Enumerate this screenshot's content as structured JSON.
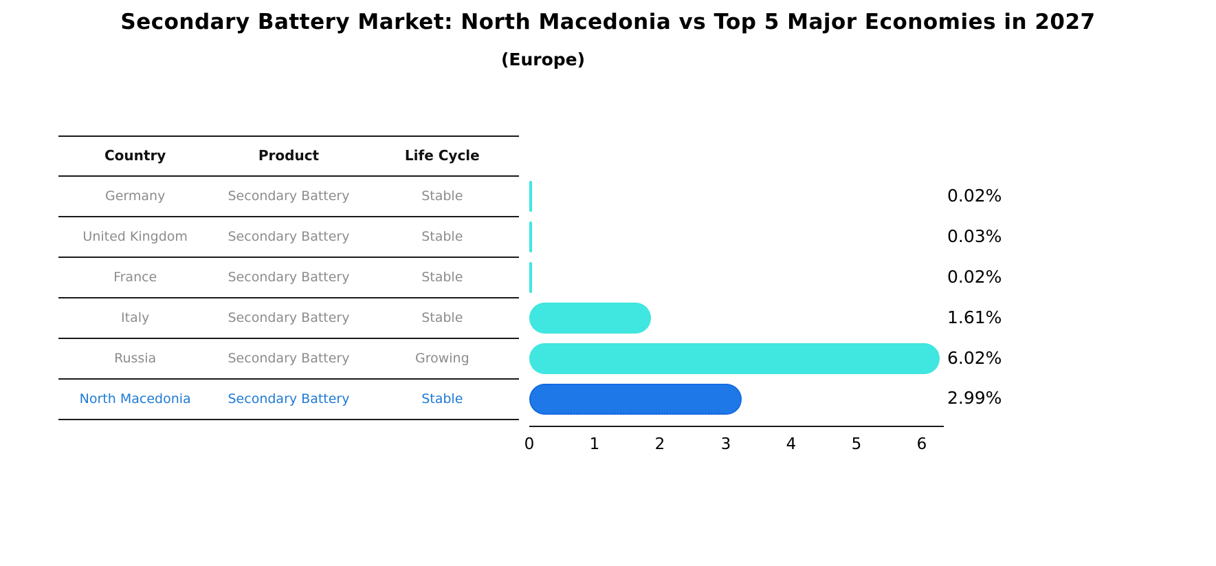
{
  "title": "Secondary Battery Market: North Macedonia vs Top 5 Major Economies in 2027",
  "subtitle": "(Europe)",
  "table": {
    "headers": [
      "Country",
      "Product",
      "Life Cycle"
    ],
    "rows": [
      {
        "country": "Germany",
        "product": "Secondary Battery",
        "life_cycle": "Stable"
      },
      {
        "country": "United Kingdom",
        "product": "Secondary Battery",
        "life_cycle": "Stable"
      },
      {
        "country": "France",
        "product": "Secondary Battery",
        "life_cycle": "Stable"
      },
      {
        "country": "Italy",
        "product": "Secondary Battery",
        "life_cycle": "Stable"
      },
      {
        "country": "Russia",
        "product": "Secondary Battery",
        "life_cycle": "Growing"
      },
      {
        "country": "North Macedonia",
        "product": "Secondary Battery",
        "life_cycle": "Stable"
      }
    ],
    "text_color": "#8c8c8c",
    "header_color": "#111111",
    "highlight_row_index": 5,
    "highlight_text_color": "#1f7ad4"
  },
  "chart_data": {
    "type": "bar",
    "orientation": "horizontal",
    "categories": [
      "Germany",
      "United Kingdom",
      "France",
      "Italy",
      "Russia",
      "North Macedonia"
    ],
    "values": [
      0.02,
      0.03,
      0.02,
      1.61,
      6.02,
      2.99
    ],
    "value_labels": [
      "0.02%",
      "0.03%",
      "0.02%",
      "1.61%",
      "6.02%",
      "2.99%"
    ],
    "xticks": [
      "0",
      "1",
      "2",
      "3",
      "4",
      "5",
      "6"
    ],
    "xlim": [
      0,
      6.35
    ],
    "grid": false,
    "legend": false,
    "bar_color": "#40e6e0",
    "highlight_index": 5,
    "highlight_color": "#1e78e8",
    "highlight_border_color": "#0f5fd7"
  }
}
